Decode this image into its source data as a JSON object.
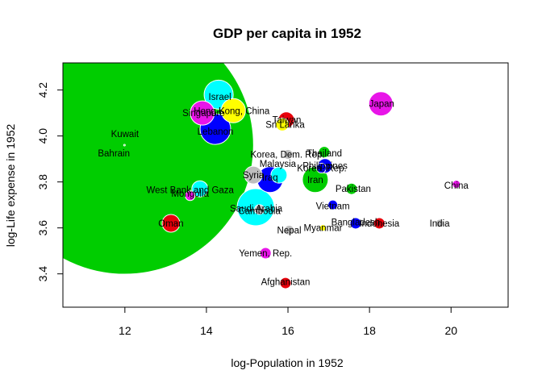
{
  "chart_data": {
    "type": "scatter",
    "title": "GDP per capita in 1952",
    "xlabel": "log-Population in 1952",
    "ylabel": "log-Life expense in 1952",
    "xlim": [
      10.48,
      21.4
    ],
    "ylim": [
      3.255,
      4.318
    ],
    "xticks": [
      12,
      14,
      16,
      18,
      20
    ],
    "yticks": [
      3.4,
      3.6,
      3.8,
      4.0,
      4.2
    ],
    "ytick_labels": [
      "3.4",
      "3.6",
      "3.8",
      "4.0",
      "4.2"
    ],
    "grid": false,
    "colors": {
      "green": "#00CD00",
      "cyan": "#00FFFF",
      "blue": "#0000FF",
      "magenta": "#E815E8",
      "red": "#E8000B",
      "yellow": "#FFFF00",
      "gray": "#BEBEBE"
    },
    "points": [
      {
        "label": "Kuwait",
        "x": 11.99,
        "y": 3.96,
        "r": 160,
        "color": "green",
        "lx": 12.0,
        "ly": 4.01
      },
      {
        "label": "Bahrain",
        "x": 11.99,
        "y": 3.96,
        "r": 1,
        "color": "green",
        "lx": 11.73,
        "ly": 3.925
      },
      {
        "label": "Israel",
        "x": 14.3,
        "y": 4.18,
        "r": 18,
        "color": "cyan",
        "lx": 14.33,
        "ly": 4.17
      },
      {
        "label": "Hong Kong, China",
        "x": 14.66,
        "y": 4.11,
        "r": 15,
        "color": "yellow",
        "lx": 14.62,
        "ly": 4.11
      },
      {
        "label": "Singapore",
        "x": 13.9,
        "y": 4.1,
        "r": 15,
        "color": "magenta",
        "lx": 13.93,
        "ly": 4.1
      },
      {
        "label": "Lebanon",
        "x": 14.22,
        "y": 4.03,
        "r": 19,
        "color": "blue",
        "lx": 14.22,
        "ly": 4.02
      },
      {
        "label": "Taiwan",
        "x": 15.96,
        "y": 4.07,
        "r": 10,
        "color": "red",
        "lx": 15.97,
        "ly": 4.07
      },
      {
        "label": "Sri Lanka",
        "x": 15.86,
        "y": 4.05,
        "r": 8,
        "color": "yellow",
        "lx": 15.93,
        "ly": 4.05
      },
      {
        "label": "Japan",
        "x": 18.28,
        "y": 4.14,
        "r": 15,
        "color": "magenta",
        "lx": 18.3,
        "ly": 4.14
      },
      {
        "label": "Thailand",
        "x": 16.89,
        "y": 3.93,
        "r": 7,
        "color": "green",
        "lx": 16.89,
        "ly": 3.925
      },
      {
        "label": "Korea, Dem. Rep.",
        "x": 16.0,
        "y": 3.92,
        "r": 6,
        "color": "gray",
        "lx": 15.99,
        "ly": 3.92
      },
      {
        "label": "Philippines",
        "x": 16.91,
        "y": 3.87,
        "r": 9,
        "color": "blue",
        "lx": 16.91,
        "ly": 3.87
      },
      {
        "label": "Korea, Rep.",
        "x": 16.82,
        "y": 3.86,
        "r": 6,
        "color": "blue",
        "lx": 16.83,
        "ly": 3.86
      },
      {
        "label": "Malaysia",
        "x": 15.78,
        "y": 3.83,
        "r": 10,
        "color": "cyan",
        "lx": 15.75,
        "ly": 3.88
      },
      {
        "label": "Syria",
        "x": 15.15,
        "y": 3.83,
        "r": 11,
        "color": "gray",
        "lx": 15.15,
        "ly": 3.83
      },
      {
        "label": "Iraq",
        "x": 15.56,
        "y": 3.81,
        "r": 16,
        "color": "blue",
        "lx": 15.56,
        "ly": 3.82
      },
      {
        "label": "Iran",
        "x": 16.67,
        "y": 3.81,
        "r": 16,
        "color": "green",
        "lx": 16.67,
        "ly": 3.81
      },
      {
        "label": "Pakistan",
        "x": 17.56,
        "y": 3.77,
        "r": 7,
        "color": "green",
        "lx": 17.6,
        "ly": 3.77
      },
      {
        "label": "China",
        "x": 20.13,
        "y": 3.79,
        "r": 5,
        "color": "magenta",
        "lx": 20.13,
        "ly": 3.785
      },
      {
        "label": "West Bank and Gaza",
        "x": 13.84,
        "y": 3.77,
        "r": 10,
        "color": "cyan",
        "lx": 13.6,
        "ly": 3.765
      },
      {
        "label": "Mongolia",
        "x": 13.6,
        "y": 3.74,
        "r": 6,
        "color": "magenta",
        "lx": 13.6,
        "ly": 3.75
      },
      {
        "label": "Saudi Arabia",
        "x": 15.21,
        "y": 3.69,
        "r": 23,
        "color": "cyan",
        "lx": 15.22,
        "ly": 3.685
      },
      {
        "label": "Cambodia",
        "x": 15.3,
        "y": 3.68,
        "r": 6,
        "color": "gray",
        "lx": 15.3,
        "ly": 3.675
      },
      {
        "label": "Vietnam",
        "x": 17.1,
        "y": 3.7,
        "r": 6,
        "color": "blue",
        "lx": 17.1,
        "ly": 3.695
      },
      {
        "label": "Oman",
        "x": 13.13,
        "y": 3.62,
        "r": 11,
        "color": "red",
        "lx": 13.13,
        "ly": 3.62
      },
      {
        "label": "Bangladesh",
        "x": 17.66,
        "y": 3.62,
        "r": 7,
        "color": "blue",
        "lx": 17.66,
        "ly": 3.625
      },
      {
        "label": "Indonesia",
        "x": 18.24,
        "y": 3.62,
        "r": 7,
        "color": "red",
        "lx": 18.24,
        "ly": 3.62
      },
      {
        "label": "India",
        "x": 19.72,
        "y": 3.62,
        "r": 5,
        "color": "gray",
        "lx": 19.72,
        "ly": 3.62
      },
      {
        "label": "Nepal",
        "x": 16.03,
        "y": 3.59,
        "r": 6,
        "color": "gray",
        "lx": 16.03,
        "ly": 3.59
      },
      {
        "label": "Myanmar",
        "x": 16.86,
        "y": 3.6,
        "r": 4,
        "color": "yellow",
        "lx": 16.86,
        "ly": 3.6
      },
      {
        "label": "Yemen, Rep.",
        "x": 15.45,
        "y": 3.49,
        "r": 7,
        "color": "magenta",
        "lx": 15.45,
        "ly": 3.49
      },
      {
        "label": "Afghanistan",
        "x": 15.94,
        "y": 3.36,
        "r": 7,
        "color": "red",
        "lx": 15.94,
        "ly": 3.365
      }
    ]
  }
}
